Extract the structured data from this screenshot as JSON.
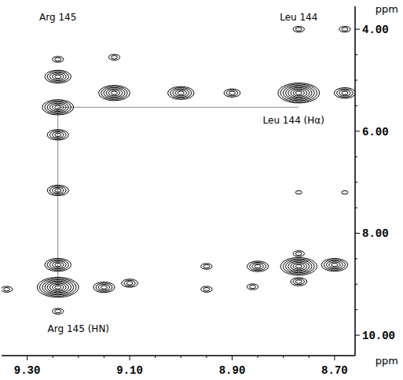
{
  "chart_data": {
    "type": "contour",
    "x_label": "ppm",
    "y_label": "ppm",
    "xlim": [
      9.35,
      8.66
    ],
    "ylim": [
      3.55,
      10.4
    ],
    "xticks": [
      {
        "value": 9.3,
        "label": "9.30"
      },
      {
        "value": 9.1,
        "label": "9.10"
      },
      {
        "value": 8.9,
        "label": "8.90"
      },
      {
        "value": 8.7,
        "label": "8.70"
      }
    ],
    "yticks": [
      {
        "value": 4,
        "label": "4.00"
      },
      {
        "value": 6,
        "label": "6.00"
      },
      {
        "value": 8,
        "label": "8.00"
      },
      {
        "value": 10,
        "label": "10.00"
      }
    ],
    "color": "#000000",
    "peaks": {
      "x": [
        9.24,
        9.24,
        9.24,
        9.24,
        9.24,
        9.24,
        9.24,
        9.24,
        9.13,
        9.13,
        9.0,
        8.9,
        8.77,
        8.68,
        8.77,
        8.77,
        8.77,
        8.77,
        8.77,
        8.95,
        8.85,
        8.7,
        9.1,
        9.15,
        9.34,
        8.95,
        8.86,
        8.68,
        8.68
      ],
      "y": [
        4.59,
        4.93,
        5.53,
        6.07,
        7.16,
        8.62,
        9.06,
        9.53,
        4.55,
        5.25,
        5.25,
        5.25,
        5.25,
        5.25,
        4.0,
        7.2,
        8.4,
        8.65,
        8.95,
        8.65,
        8.65,
        8.62,
        8.98,
        9.06,
        9.1,
        9.1,
        9.05,
        4.0,
        7.2
      ],
      "intensity": [
        2,
        5,
        6,
        4,
        4,
        5,
        8,
        2,
        2,
        6,
        5,
        3,
        8,
        4,
        2,
        1,
        2,
        7,
        3,
        2,
        4,
        5,
        3,
        4,
        2,
        2,
        2,
        2,
        1
      ]
    },
    "sequential_walk": {
      "x": [
        9.24,
        9.24,
        8.77
      ],
      "y": [
        9.06,
        5.53,
        5.53
      ]
    },
    "annotations": [
      {
        "text": "Arg 145",
        "x": 9.24,
        "y": 3.78
      },
      {
        "text": "Leu 144",
        "x": 8.77,
        "y": 3.78
      },
      {
        "text": "Leu 144 (Hα)",
        "x": 8.78,
        "y": 5.8
      },
      {
        "text": "Arg 145 (HN)",
        "x": 9.2,
        "y": 9.88
      }
    ]
  }
}
